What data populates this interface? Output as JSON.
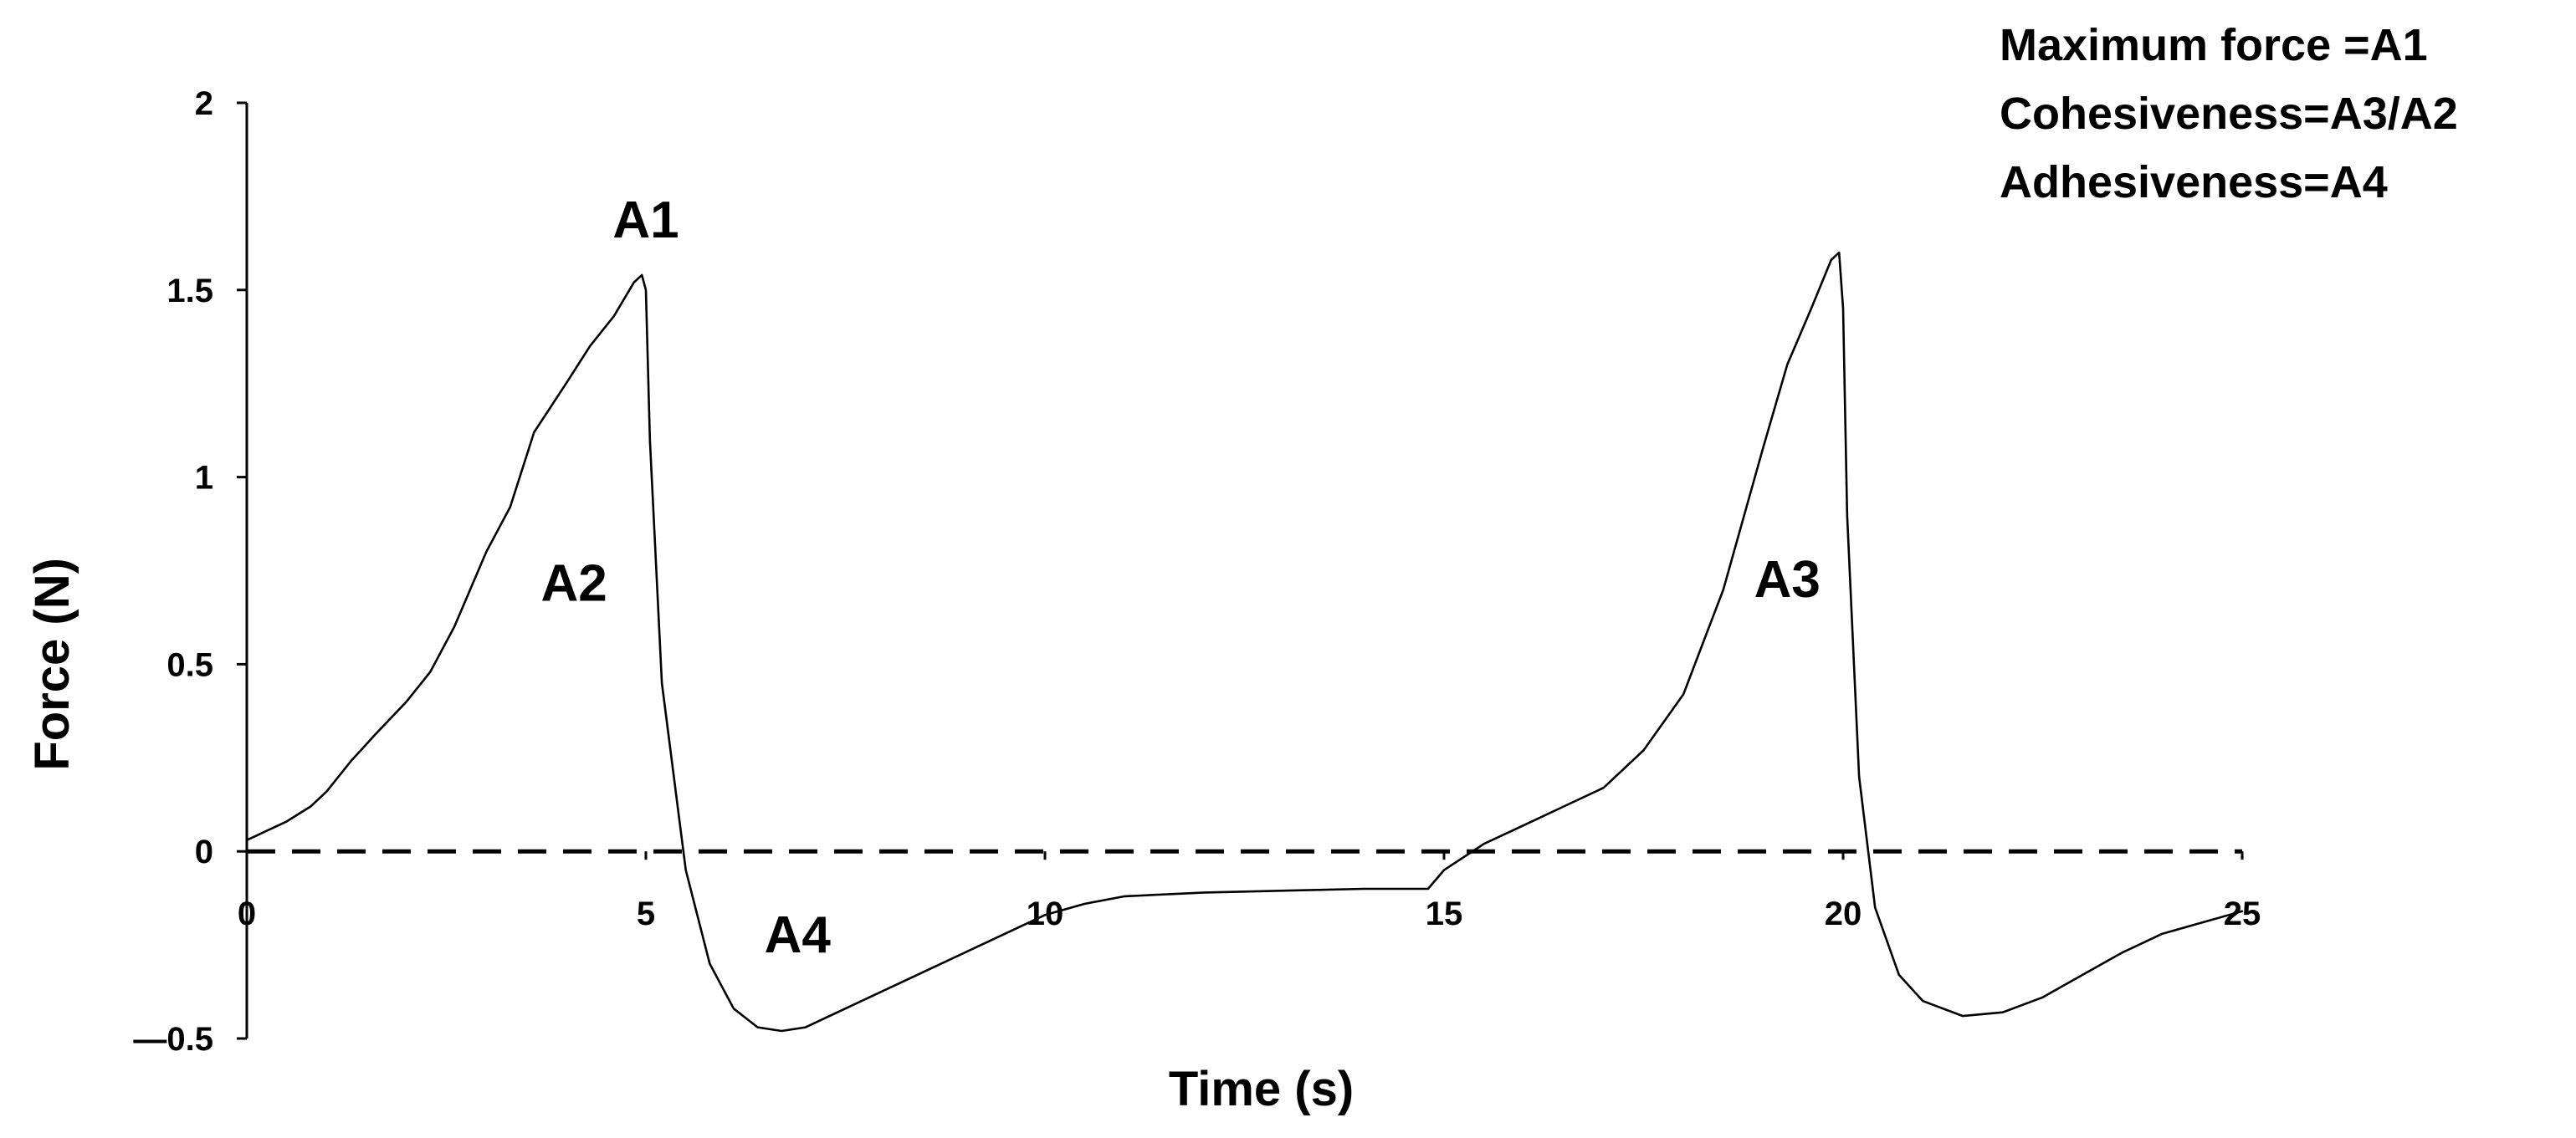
{
  "chart_data": {
    "type": "line",
    "xlabel": "Time (s)",
    "ylabel": "Force (N)",
    "xlim": [
      0,
      25
    ],
    "ylim": [
      -0.5,
      2
    ],
    "xticks": [
      0,
      5,
      10,
      15,
      20,
      25
    ],
    "xtick_labels": [
      "0",
      "5",
      "10",
      "15",
      "20",
      "25"
    ],
    "yticks": [
      -0.5,
      0,
      0.5,
      1,
      1.5,
      2
    ],
    "ytick_labels": [
      "—0.5",
      "0",
      "0.5",
      "1",
      "1.5",
      "2"
    ],
    "reference_line": {
      "y": 0,
      "style": "dashed"
    },
    "series": [
      {
        "x": [
          0,
          0.2,
          0.5,
          0.8,
          1.0,
          1.3,
          1.6,
          2.0,
          2.3,
          2.6,
          2.8,
          3.0,
          3.3,
          3.6,
          4.0,
          4.3,
          4.6,
          4.85,
          4.95,
          5.0,
          5.05,
          5.2,
          5.5,
          5.8,
          6.1,
          6.4,
          6.7,
          7.0,
          7.5,
          8.0,
          8.5,
          9.0,
          9.5,
          10.0,
          10.5,
          11.0,
          12.0,
          13.0,
          14.0,
          14.8,
          15.0,
          15.5,
          16.0,
          16.5,
          17.0,
          17.5,
          18.0,
          18.5,
          19.0,
          19.3,
          19.6,
          19.85,
          19.95,
          20.0,
          20.05,
          20.2,
          20.4,
          20.7,
          21.0,
          21.5,
          22.0,
          22.5,
          23.0,
          23.5,
          24.0,
          24.5,
          25.0
        ],
        "y": [
          0.03,
          0.05,
          0.08,
          0.12,
          0.16,
          0.24,
          0.31,
          0.4,
          0.48,
          0.6,
          0.7,
          0.8,
          0.92,
          1.12,
          1.25,
          1.35,
          1.43,
          1.52,
          1.54,
          1.5,
          1.1,
          0.45,
          -0.05,
          -0.3,
          -0.42,
          -0.47,
          -0.48,
          -0.47,
          -0.42,
          -0.37,
          -0.32,
          -0.27,
          -0.22,
          -0.17,
          -0.14,
          -0.12,
          -0.11,
          -0.105,
          -0.1,
          -0.1,
          -0.05,
          0.02,
          0.07,
          0.12,
          0.17,
          0.27,
          0.42,
          0.7,
          1.08,
          1.3,
          1.45,
          1.58,
          1.6,
          1.45,
          0.9,
          0.2,
          -0.15,
          -0.33,
          -0.4,
          -0.44,
          -0.43,
          -0.39,
          -0.33,
          -0.27,
          -0.22,
          -0.19,
          -0.16
        ]
      }
    ],
    "annotations": [
      {
        "text": "A1",
        "x": 5.0,
        "y": 1.64
      },
      {
        "text": "A2",
        "x": 4.1,
        "y": 0.67
      },
      {
        "text": "A3",
        "x": 19.3,
        "y": 0.68
      },
      {
        "text": "A4",
        "x": 6.9,
        "y": -0.27
      }
    ],
    "legend": {
      "position": "top-right",
      "lines": [
        "Maximum force =A1",
        "Cohesiveness=A3/A2",
        "Adhesiveness=A4"
      ]
    }
  }
}
